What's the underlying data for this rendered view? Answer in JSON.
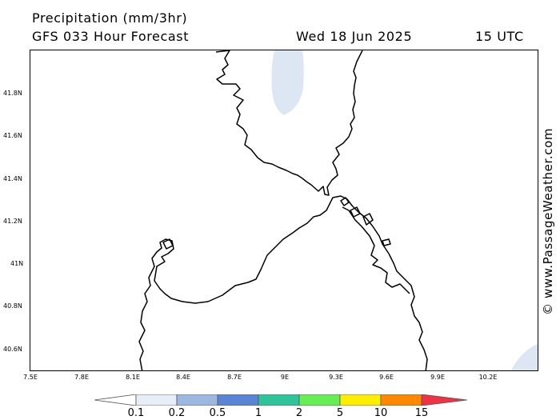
{
  "header": {
    "title": "Precipitation (mm/3hr)",
    "subtitle": "GFS 033 Hour Forecast",
    "date": "Wed 18 Jun 2025",
    "time": "15 UTC"
  },
  "watermark": "© www.PassageWeather.com",
  "axes": {
    "latitude_labels": [
      "41.8N",
      "41.6N",
      "41.4N",
      "41.2N",
      "41N",
      "40.8N",
      "40.6N"
    ],
    "longitude_labels": [
      "7.5E",
      "7.8E",
      "8.1E",
      "8.4E",
      "8.7E",
      "9E",
      "9.3E",
      "9.6E",
      "9.9E",
      "10.2E"
    ]
  },
  "legend": {
    "labels": [
      "0.1",
      "0.2",
      "0.5",
      "1",
      "2",
      "5",
      "10",
      "15"
    ],
    "colors": [
      "#e8eef8",
      "#9db8e0",
      "#5a85d6",
      "#2ec49a",
      "#66ee55",
      "#ffee00",
      "#ff8800",
      "#ee3344"
    ]
  },
  "precip_color": "#dde6f3",
  "coast_color": "#000000"
}
